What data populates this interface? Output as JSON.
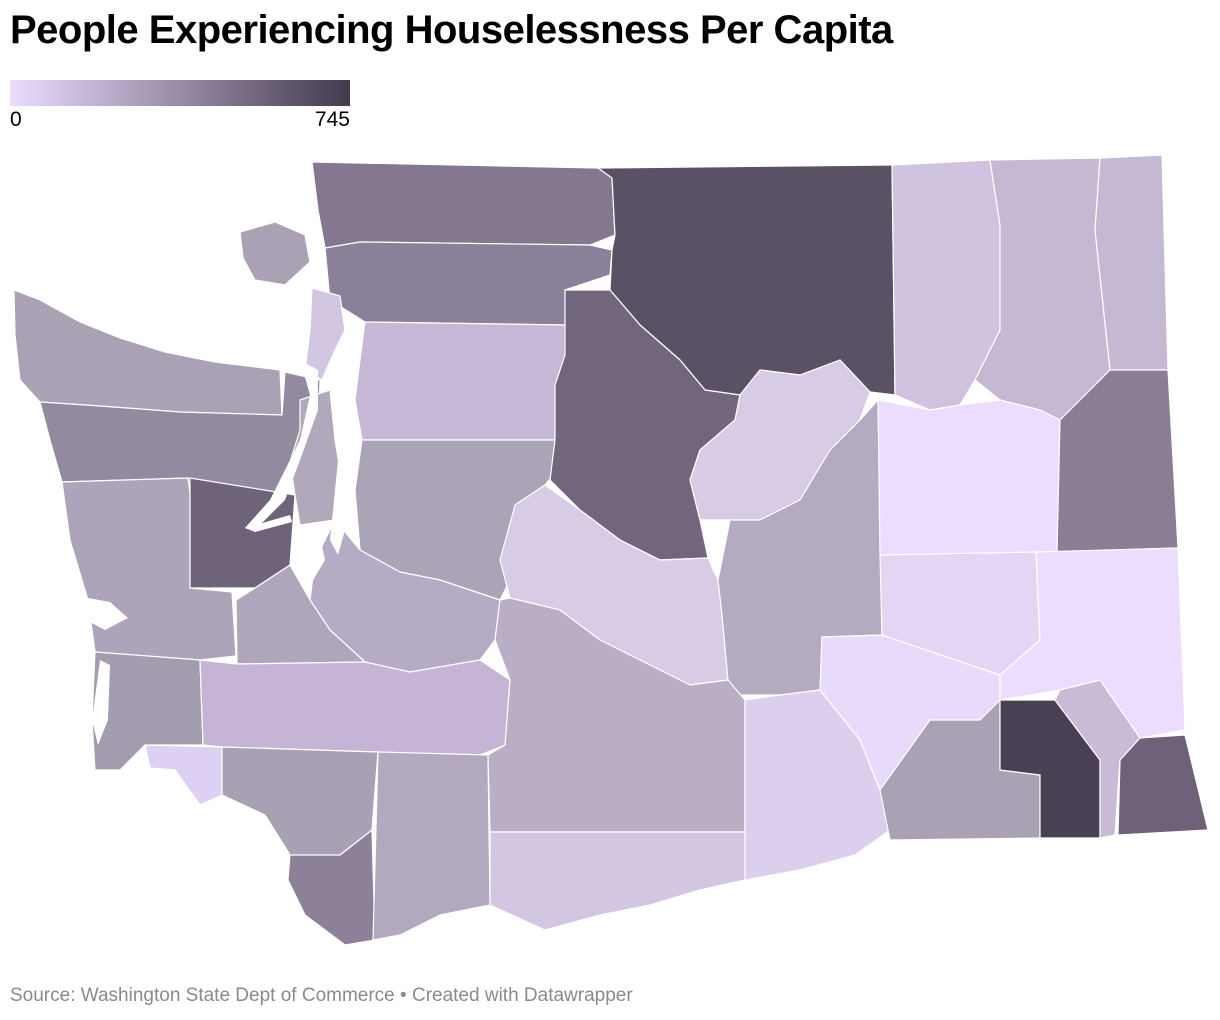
{
  "title": "People Experiencing Houselessness Per Capita",
  "legend": {
    "min_label": "0",
    "max_label": "745",
    "min_value": 0,
    "max_value": 745,
    "color_low": "#ecdcff",
    "color_high": "#423a4d"
  },
  "footer": {
    "source": "Source: Washington State Dept of Commerce",
    "separator": " • ",
    "credit": "Created with Datawrapper"
  },
  "map_data": {
    "region": "Washington State counties",
    "color_scale": "sequential",
    "county_fill_colors": {
      "whatcom": "#857790",
      "skagit": "#8b8099",
      "snohomish": "#c6b7d6",
      "san-juan": "#aba1b5",
      "island": "#d3c6e3",
      "clallam": "#aba1b5",
      "jefferson": "#938aa0",
      "kitsap": "#b1a9bb",
      "king": "#aba3b6",
      "grays-harbor": "#aea4b9",
      "mason": "#6f6379",
      "pierce": "#b6abc5",
      "thurston": "#b0a6bc",
      "pacific": "#a39bae",
      "wahkiakum": "#ddd0f2",
      "lewis": "#c5b4d5",
      "cowlitz": "#a8a0b3",
      "clark": "#8c8199",
      "skamania": "#b3a9be",
      "okanogan": "#5b5165",
      "chelan": "#72667d",
      "douglas": "#d8cbe6",
      "kittitas": "#d8cbe6",
      "grant": "#b4abc0",
      "yakima": "#b9aec6",
      "klickitat": "#d3c6e3",
      "benton": "#dccfee",
      "ferry": "#d0c3e0",
      "stevens": "#c5b8d2",
      "pend-oreille": "#c5b8d2",
      "lincoln": "#ecdcff",
      "spokane": "#8b7e94",
      "adams": "#e3d6f5",
      "whitman": "#ecdcff",
      "franklin": "#e8dafb",
      "walla-walla": "#aaa1b4",
      "columbia": "#4a4054",
      "garfield": "#c9bad7",
      "asotin": "#6e627b"
    }
  }
}
